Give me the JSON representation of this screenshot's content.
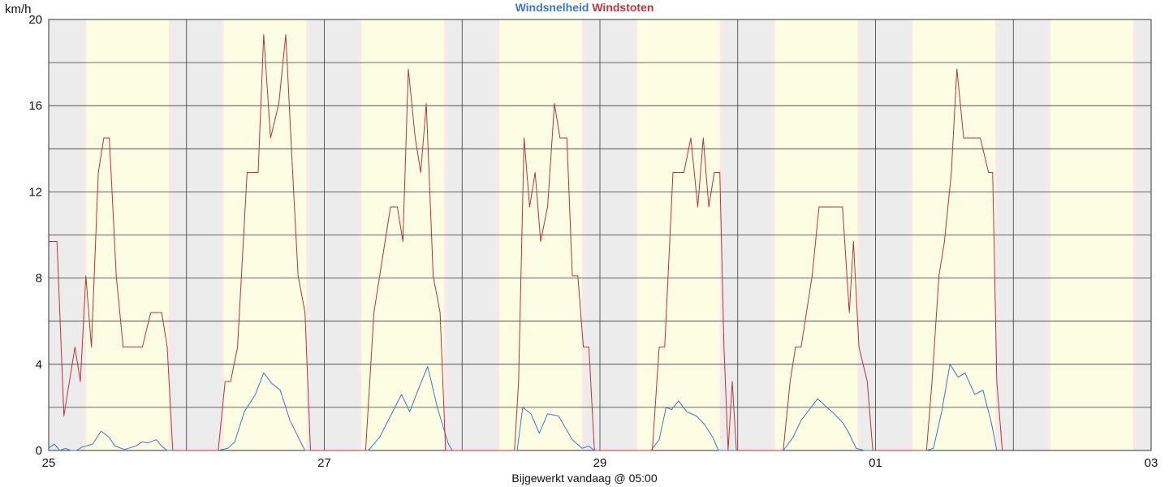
{
  "chart_data": {
    "type": "line",
    "title_parts": [
      {
        "text": "Windsnelheid",
        "color": "#3a78c8"
      },
      {
        "text": "Windstoten",
        "color": "#b8353a"
      }
    ],
    "ylabel": "km/h",
    "footer": "Bijgewerkt vandaag @ 05:00",
    "ylim": [
      0,
      20
    ],
    "y_ticks": [
      0,
      4,
      8,
      12,
      16,
      20
    ],
    "x_unit": "days since 25",
    "xlim": [
      0,
      8
    ],
    "x_tick_labels": [
      {
        "x": 0,
        "label": "25"
      },
      {
        "x": 2,
        "label": "27"
      },
      {
        "x": 4,
        "label": "29"
      },
      {
        "x": 6,
        "label": "01"
      },
      {
        "x": 8,
        "label": "03"
      }
    ],
    "daylight_bands": [
      [
        0.27,
        0.87
      ],
      [
        1.27,
        1.87
      ],
      [
        2.27,
        2.87
      ],
      [
        3.27,
        3.87
      ],
      [
        4.27,
        4.87
      ],
      [
        5.27,
        5.87
      ],
      [
        6.27,
        6.87
      ],
      [
        7.27,
        7.87
      ]
    ],
    "grid": true,
    "background": {
      "night": "#ececec",
      "day": "#fdfde3",
      "twilight": "#f7e9ec"
    },
    "series": [
      {
        "name": "Windsnelheid",
        "color": "#3a78c8",
        "points": [
          [
            0.0,
            0.1
          ],
          [
            0.04,
            0.3
          ],
          [
            0.08,
            0.0
          ],
          [
            0.12,
            0.1
          ],
          [
            0.16,
            0.0
          ],
          [
            0.2,
            0.0
          ],
          [
            0.24,
            0.15
          ],
          [
            0.32,
            0.3
          ],
          [
            0.38,
            0.9
          ],
          [
            0.44,
            0.6
          ],
          [
            0.48,
            0.2
          ],
          [
            0.55,
            0.05
          ],
          [
            0.63,
            0.2
          ],
          [
            0.68,
            0.4
          ],
          [
            0.72,
            0.35
          ],
          [
            0.78,
            0.5
          ],
          [
            0.82,
            0.2
          ],
          [
            0.86,
            0.0
          ],
          [
            1.23,
            0.0
          ],
          [
            1.3,
            0.1
          ],
          [
            1.35,
            0.4
          ],
          [
            1.42,
            1.8
          ],
          [
            1.5,
            2.6
          ],
          [
            1.56,
            3.6
          ],
          [
            1.62,
            3.1
          ],
          [
            1.68,
            2.8
          ],
          [
            1.75,
            1.4
          ],
          [
            1.82,
            0.5
          ],
          [
            1.86,
            0.0
          ],
          [
            2.32,
            0.0
          ],
          [
            2.4,
            0.6
          ],
          [
            2.48,
            1.6
          ],
          [
            2.56,
            2.6
          ],
          [
            2.62,
            1.8
          ],
          [
            2.68,
            2.8
          ],
          [
            2.75,
            3.9
          ],
          [
            2.82,
            2.0
          ],
          [
            2.9,
            0.3
          ],
          [
            2.93,
            0.0
          ],
          [
            3.37,
            0.0
          ],
          [
            3.4,
            0.0
          ],
          [
            3.44,
            2.0
          ],
          [
            3.5,
            1.7
          ],
          [
            3.56,
            0.8
          ],
          [
            3.62,
            1.7
          ],
          [
            3.7,
            1.6
          ],
          [
            3.8,
            0.5
          ],
          [
            3.87,
            0.1
          ],
          [
            3.92,
            0.2
          ],
          [
            3.96,
            0.0
          ],
          [
            4.37,
            0.0
          ],
          [
            4.43,
            0.5
          ],
          [
            4.48,
            2.0
          ],
          [
            4.52,
            1.9
          ],
          [
            4.57,
            2.3
          ],
          [
            4.63,
            1.8
          ],
          [
            4.7,
            1.6
          ],
          [
            4.76,
            1.2
          ],
          [
            4.82,
            0.6
          ],
          [
            4.86,
            0.0
          ],
          [
            5.33,
            0.0
          ],
          [
            5.4,
            0.6
          ],
          [
            5.46,
            1.4
          ],
          [
            5.52,
            1.9
          ],
          [
            5.58,
            2.4
          ],
          [
            5.63,
            2.1
          ],
          [
            5.7,
            1.7
          ],
          [
            5.76,
            1.3
          ],
          [
            5.8,
            0.9
          ],
          [
            5.86,
            0.1
          ],
          [
            5.92,
            0.0
          ],
          [
            6.37,
            0.0
          ],
          [
            6.42,
            0.1
          ],
          [
            6.48,
            1.8
          ],
          [
            6.54,
            4.0
          ],
          [
            6.6,
            3.4
          ],
          [
            6.65,
            3.6
          ],
          [
            6.72,
            2.6
          ],
          [
            6.78,
            2.8
          ],
          [
            6.84,
            1.3
          ],
          [
            6.88,
            0.0
          ]
        ]
      },
      {
        "name": "Windstoten",
        "color": "#b8353a",
        "points": [
          [
            0.0,
            9.7
          ],
          [
            0.06,
            9.7
          ],
          [
            0.11,
            1.6
          ],
          [
            0.19,
            4.8
          ],
          [
            0.23,
            3.2
          ],
          [
            0.27,
            8.1
          ],
          [
            0.31,
            4.8
          ],
          [
            0.36,
            12.9
          ],
          [
            0.4,
            14.5
          ],
          [
            0.44,
            14.5
          ],
          [
            0.49,
            8.1
          ],
          [
            0.54,
            4.8
          ],
          [
            0.62,
            4.8
          ],
          [
            0.68,
            4.8
          ],
          [
            0.74,
            6.4
          ],
          [
            0.82,
            6.4
          ],
          [
            0.86,
            4.8
          ],
          [
            0.9,
            0.0
          ],
          [
            1.23,
            0.0
          ],
          [
            1.28,
            3.2
          ],
          [
            1.32,
            3.2
          ],
          [
            1.37,
            4.8
          ],
          [
            1.44,
            12.9
          ],
          [
            1.52,
            12.9
          ],
          [
            1.56,
            19.3
          ],
          [
            1.61,
            14.5
          ],
          [
            1.67,
            16.1
          ],
          [
            1.72,
            19.3
          ],
          [
            1.77,
            12.9
          ],
          [
            1.81,
            8.1
          ],
          [
            1.86,
            6.4
          ],
          [
            1.9,
            0.0
          ],
          [
            2.3,
            0.0
          ],
          [
            2.36,
            6.4
          ],
          [
            2.48,
            11.3
          ],
          [
            2.53,
            11.3
          ],
          [
            2.57,
            9.7
          ],
          [
            2.61,
            17.7
          ],
          [
            2.66,
            14.5
          ],
          [
            2.7,
            12.9
          ],
          [
            2.74,
            16.1
          ],
          [
            2.79,
            8.1
          ],
          [
            2.84,
            6.4
          ],
          [
            2.88,
            0.0
          ],
          [
            3.38,
            0.0
          ],
          [
            3.41,
            3.2
          ],
          [
            3.45,
            14.5
          ],
          [
            3.49,
            11.3
          ],
          [
            3.53,
            12.9
          ],
          [
            3.57,
            9.7
          ],
          [
            3.62,
            11.3
          ],
          [
            3.67,
            16.1
          ],
          [
            3.71,
            14.5
          ],
          [
            3.76,
            14.5
          ],
          [
            3.8,
            8.1
          ],
          [
            3.84,
            8.1
          ],
          [
            3.88,
            4.8
          ],
          [
            3.92,
            4.8
          ],
          [
            3.96,
            0.0
          ],
          [
            4.38,
            0.0
          ],
          [
            4.43,
            4.8
          ],
          [
            4.47,
            4.8
          ],
          [
            4.53,
            12.9
          ],
          [
            4.61,
            12.9
          ],
          [
            4.66,
            14.5
          ],
          [
            4.71,
            11.3
          ],
          [
            4.75,
            14.5
          ],
          [
            4.79,
            11.3
          ],
          [
            4.83,
            12.9
          ],
          [
            4.87,
            12.9
          ],
          [
            4.9,
            4.8
          ],
          [
            4.93,
            0.0
          ],
          [
            4.96,
            3.2
          ],
          [
            4.99,
            0.0
          ],
          [
            5.33,
            0.0
          ],
          [
            5.38,
            3.2
          ],
          [
            5.42,
            4.8
          ],
          [
            5.46,
            4.8
          ],
          [
            5.54,
            8.1
          ],
          [
            5.59,
            11.3
          ],
          [
            5.68,
            11.3
          ],
          [
            5.76,
            11.3
          ],
          [
            5.81,
            6.4
          ],
          [
            5.84,
            9.7
          ],
          [
            5.88,
            4.8
          ],
          [
            5.94,
            3.2
          ],
          [
            5.98,
            0.0
          ],
          [
            6.37,
            0.0
          ],
          [
            6.41,
            3.2
          ],
          [
            6.46,
            8.1
          ],
          [
            6.5,
            9.7
          ],
          [
            6.55,
            12.9
          ],
          [
            6.59,
            17.7
          ],
          [
            6.64,
            14.5
          ],
          [
            6.7,
            14.5
          ],
          [
            6.76,
            14.5
          ],
          [
            6.82,
            12.9
          ],
          [
            6.85,
            12.9
          ],
          [
            6.88,
            3.2
          ],
          [
            6.92,
            0.0
          ]
        ]
      }
    ]
  }
}
